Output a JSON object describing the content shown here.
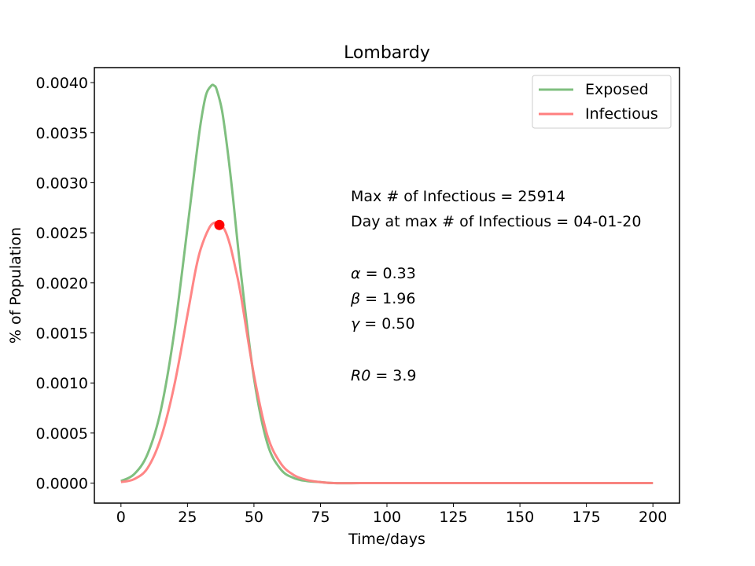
{
  "chart_data": {
    "type": "line",
    "title": "Lombardy",
    "xlabel": "Time/days",
    "ylabel": "% of Population",
    "xlim": [
      -10,
      210
    ],
    "ylim": [
      -0.0002,
      0.00415
    ],
    "x_ticks": [
      0,
      25,
      50,
      75,
      100,
      125,
      150,
      175,
      200
    ],
    "x_tick_labels": [
      "0",
      "25",
      "50",
      "75",
      "100",
      "125",
      "150",
      "175",
      "200"
    ],
    "y_ticks": [
      0,
      0.0005,
      0.001,
      0.0015,
      0.002,
      0.0025,
      0.003,
      0.0035,
      0.004
    ],
    "y_tick_labels": [
      "0.0000",
      "0.0005",
      "0.0010",
      "0.0015",
      "0.0020",
      "0.0025",
      "0.0030",
      "0.0035",
      "0.0040"
    ],
    "grid": false,
    "legend_position": "top-right",
    "series": [
      {
        "name": "Exposed",
        "color": "#7fbf7f",
        "x": [
          0,
          5,
          10,
          15,
          20,
          25,
          28,
          30,
          32,
          34,
          35,
          36,
          38,
          40,
          42,
          45,
          50,
          55,
          60,
          65,
          70,
          75,
          80,
          90,
          100,
          125,
          150,
          175,
          200
        ],
        "values": [
          2e-05,
          9e-05,
          0.00029,
          0.00073,
          0.0015,
          0.00255,
          0.0032,
          0.0036,
          0.00388,
          0.00397,
          0.00397,
          0.00393,
          0.00372,
          0.00334,
          0.00288,
          0.00212,
          0.00105,
          0.0004,
          0.00014,
          5e-05,
          2e-05,
          1e-05,
          0,
          0,
          0,
          0,
          0,
          0,
          0
        ]
      },
      {
        "name": "Infectious",
        "color": "#ff7f7f",
        "x": [
          0,
          5,
          10,
          15,
          20,
          25,
          28,
          30,
          33,
          35,
          37,
          39,
          41,
          43,
          45,
          50,
          55,
          60,
          65,
          70,
          75,
          80,
          90,
          100,
          125,
          150,
          175,
          200
        ],
        "values": [
          1e-05,
          4e-05,
          0.00015,
          0.00045,
          0.00097,
          0.00168,
          0.00212,
          0.00234,
          0.00254,
          0.0026,
          0.00259,
          0.00253,
          0.00238,
          0.00215,
          0.00189,
          0.00108,
          0.00048,
          0.0002,
          8e-05,
          3e-05,
          1e-05,
          0,
          0,
          0,
          0,
          0,
          0,
          0
        ]
      }
    ],
    "peak_marker": {
      "x": 37,
      "y": 0.002578,
      "color": "#ff0000"
    },
    "annotations": {
      "max_infectious": "Max # of Infectious = 25914",
      "day_at_max": "Day at max # of Infectious = 04-01-20",
      "alpha_symbol": "α",
      "alpha_value": " = 0.33",
      "beta_symbol": "β",
      "beta_value": " = 1.96",
      "gamma_symbol": "γ",
      "gamma_value": " = 0.50",
      "r0_symbol": "R0",
      "r0_value": " = 3.9"
    }
  }
}
